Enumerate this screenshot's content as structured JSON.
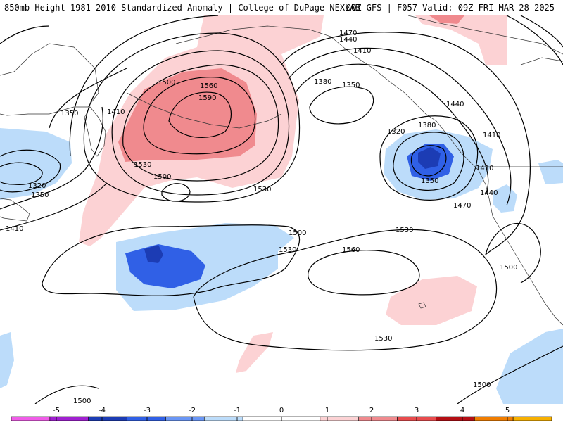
{
  "header": {
    "title_left": "850mb Height 1981-2010 Standardized Anomaly | College of DuPage NEXLAB",
    "title_right": "00Z GFS | F057 Valid: 09Z FRI MAR 28 2025"
  },
  "contour_labels": [
    {
      "name": "label-1500-nw",
      "text": "1500"
    },
    {
      "name": "label-1560-high",
      "text": "1560"
    },
    {
      "name": "label-1590-high",
      "text": "1590"
    },
    {
      "name": "label-1530-high-w",
      "text": "1530"
    },
    {
      "name": "label-1500-mid",
      "text": "1500"
    },
    {
      "name": "label-1410-west",
      "text": "1410"
    },
    {
      "name": "label-1350-west",
      "text": "1350"
    },
    {
      "name": "label-1320-far-west",
      "text": "1320"
    },
    {
      "name": "label-1350-far-west",
      "text": "1350"
    },
    {
      "name": "label-1410-far-west",
      "text": "1410"
    },
    {
      "name": "label-1470-top",
      "text": "1470"
    },
    {
      "name": "label-1440-top",
      "text": "1440"
    },
    {
      "name": "label-1410-top",
      "text": "1410"
    },
    {
      "name": "label-1380-gulf",
      "text": "1380"
    },
    {
      "name": "label-1350-gulf",
      "text": "1350"
    },
    {
      "name": "label-1320-low",
      "text": "1320"
    },
    {
      "name": "label-1380-coast",
      "text": "1380"
    },
    {
      "name": "label-1350-low-s",
      "text": "1350"
    },
    {
      "name": "label-1410-coast",
      "text": "1410"
    },
    {
      "name": "label-1410-inland",
      "text": "1410"
    },
    {
      "name": "label-1440-east",
      "text": "1440"
    },
    {
      "name": "label-1440-inland",
      "text": "1440"
    },
    {
      "name": "label-1470-coast",
      "text": "1470"
    },
    {
      "name": "label-1530-center",
      "text": "1530"
    },
    {
      "name": "label-1530-mid-n",
      "text": "1530"
    },
    {
      "name": "label-1530-north",
      "text": "1530"
    },
    {
      "name": "label-1500-trough",
      "text": "1500"
    },
    {
      "name": "label-1560-pacific",
      "text": "1560"
    },
    {
      "name": "label-1530-south",
      "text": "1530"
    },
    {
      "name": "label-1500-se",
      "text": "1500"
    },
    {
      "name": "label-1500-ssw",
      "text": "1500"
    },
    {
      "name": "label-1500-sw",
      "text": "1500"
    }
  ],
  "legend": {
    "colors": [
      "#f05ce8",
      "#a020d0",
      "#1c3cb4",
      "#3060e6",
      "#6a96f5",
      "#bcdcfa",
      "#ffffff",
      "#ffffff",
      "#fcd2d4",
      "#f08a8e",
      "#e84c4e",
      "#b40e14",
      "#f07d00",
      "#f7b000"
    ],
    "ticks": [
      "-5",
      "-4",
      "-3",
      "-2",
      "-1",
      "0",
      "1",
      "2",
      "3",
      "4",
      "5"
    ]
  }
}
